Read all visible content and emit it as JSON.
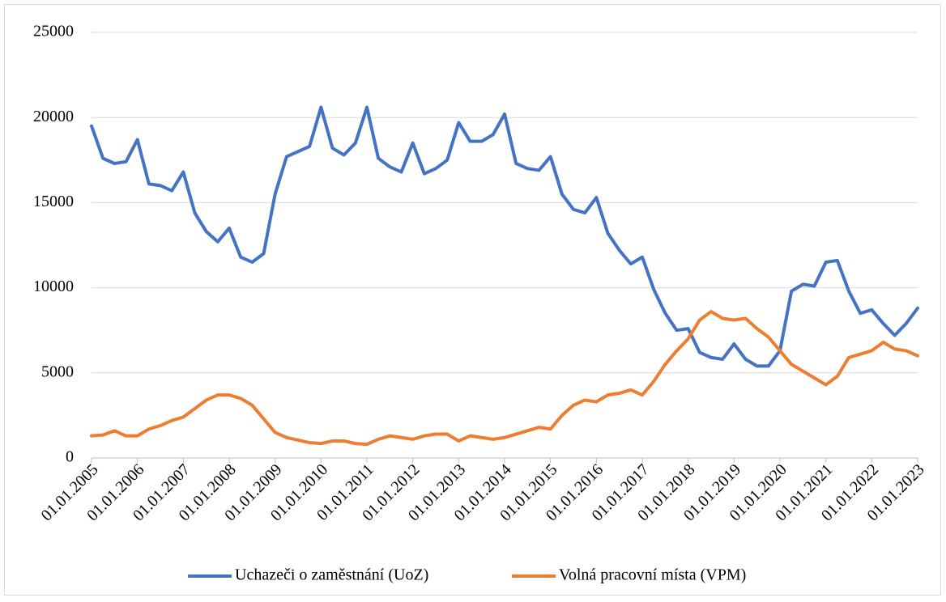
{
  "chart_data": {
    "type": "line",
    "x": [
      "01.01.2005",
      "01.04.2005",
      "01.07.2005",
      "01.10.2005",
      "01.01.2006",
      "01.04.2006",
      "01.07.2006",
      "01.10.2006",
      "01.01.2007",
      "01.04.2007",
      "01.07.2007",
      "01.10.2007",
      "01.01.2008",
      "01.04.2008",
      "01.07.2008",
      "01.10.2008",
      "01.01.2009",
      "01.04.2009",
      "01.07.2009",
      "01.10.2009",
      "01.01.2010",
      "01.04.2010",
      "01.07.2010",
      "01.10.2010",
      "01.01.2011",
      "01.04.2011",
      "01.07.2011",
      "01.10.2011",
      "01.01.2012",
      "01.04.2012",
      "01.07.2012",
      "01.10.2012",
      "01.01.2013",
      "01.04.2013",
      "01.07.2013",
      "01.10.2013",
      "01.01.2014",
      "01.04.2014",
      "01.07.2014",
      "01.10.2014",
      "01.01.2015",
      "01.04.2015",
      "01.07.2015",
      "01.10.2015",
      "01.01.2016",
      "01.04.2016",
      "01.07.2016",
      "01.10.2016",
      "01.01.2017",
      "01.04.2017",
      "01.07.2017",
      "01.10.2017",
      "01.01.2018",
      "01.04.2018",
      "01.07.2018",
      "01.10.2018",
      "01.01.2019",
      "01.04.2019",
      "01.07.2019",
      "01.10.2019",
      "01.01.2020",
      "01.04.2020",
      "01.07.2020",
      "01.10.2020",
      "01.01.2021",
      "01.04.2021",
      "01.07.2021",
      "01.10.2021",
      "01.01.2022",
      "01.04.2022",
      "01.07.2022",
      "01.10.2022",
      "01.01.2023"
    ],
    "series": [
      {
        "name": "Uchazeči o zaměstnání (UoZ)",
        "color": "#4472c4",
        "values": [
          19500,
          17600,
          17300,
          17400,
          18700,
          16100,
          16000,
          15700,
          16800,
          14400,
          13300,
          12700,
          13500,
          11800,
          11500,
          12000,
          15500,
          17700,
          18000,
          18300,
          20600,
          18200,
          17800,
          18500,
          20600,
          17600,
          17100,
          16800,
          18500,
          16700,
          17000,
          17500,
          19700,
          18600,
          18600,
          19000,
          20200,
          17300,
          17000,
          16900,
          17700,
          15500,
          14600,
          14400,
          15300,
          13200,
          12200,
          11400,
          11800,
          9900,
          8500,
          7500,
          7600,
          6200,
          5900,
          5800,
          6700,
          5800,
          5400,
          5400,
          6300,
          9800,
          10200,
          10100,
          11500,
          11600,
          9800,
          8500,
          8700,
          7900,
          7200,
          7900,
          8800
        ]
      },
      {
        "name": "Volná pracovní místa (VPM)",
        "color": "#ed7d31",
        "values": [
          1300,
          1350,
          1600,
          1300,
          1300,
          1700,
          1900,
          2200,
          2400,
          2900,
          3400,
          3700,
          3700,
          3500,
          3100,
          2300,
          1500,
          1200,
          1050,
          900,
          850,
          1000,
          1000,
          850,
          800,
          1100,
          1300,
          1200,
          1100,
          1300,
          1400,
          1400,
          1000,
          1300,
          1200,
          1100,
          1200,
          1400,
          1600,
          1800,
          1700,
          2500,
          3100,
          3400,
          3300,
          3700,
          3800,
          4000,
          3700,
          4500,
          5500,
          6300,
          7000,
          8100,
          8600,
          8200,
          8100,
          8200,
          7600,
          7100,
          6300,
          5500,
          5100,
          4700,
          4300,
          4800,
          5900,
          6100,
          6300,
          6800,
          6400,
          6300,
          6000
        ]
      }
    ],
    "xticks": [
      "01.01.2005",
      "01.01.2006",
      "01.01.2007",
      "01.01.2008",
      "01.01.2009",
      "01.01.2010",
      "01.01.2011",
      "01.01.2012",
      "01.01.2013",
      "01.01.2014",
      "01.01.2015",
      "01.01.2016",
      "01.01.2017",
      "01.01.2018",
      "01.01.2019",
      "01.01.2020",
      "01.01.2021",
      "01.01.2022",
      "01.01.2023"
    ],
    "ylim": [
      0,
      25000
    ],
    "yticks": [
      0,
      5000,
      10000,
      15000,
      20000,
      25000
    ],
    "grid": true,
    "legend": "bottom"
  }
}
